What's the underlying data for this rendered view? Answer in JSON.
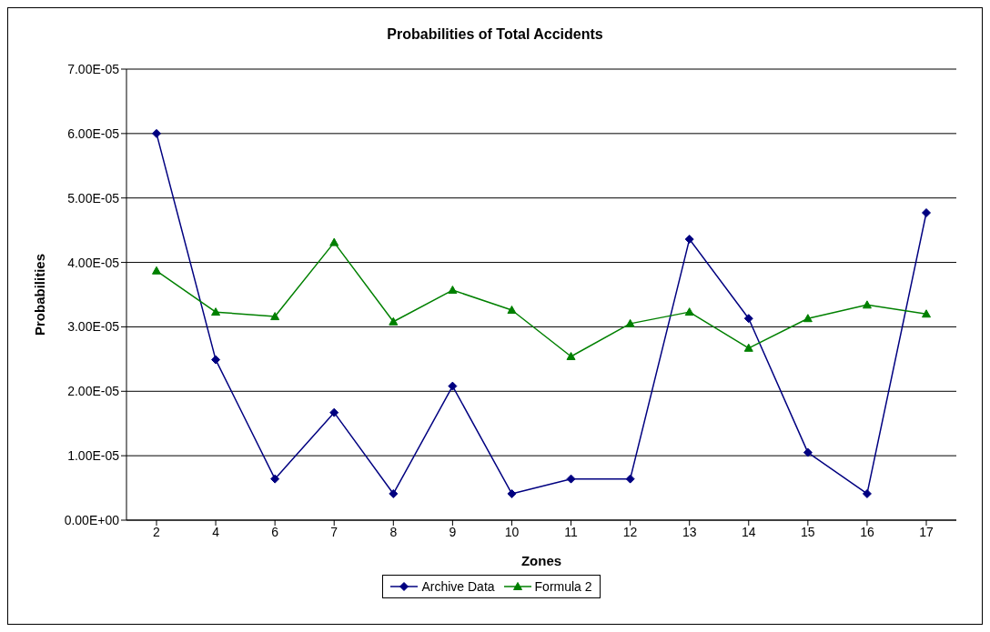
{
  "chart_data": {
    "type": "line",
    "title": "Probabilities of Total Accidents",
    "xlabel": "Zones",
    "ylabel": "Probabilities",
    "categories": [
      "2",
      "4",
      "6",
      "7",
      "8",
      "9",
      "10",
      "11",
      "12",
      "13",
      "14",
      "15",
      "16",
      "17"
    ],
    "series": [
      {
        "name": "Archive Data",
        "color": "#000080",
        "marker": "diamond",
        "values": [
          6e-05,
          2.49e-05,
          6.4e-06,
          1.67e-05,
          4.1e-06,
          2.08e-05,
          4.1e-06,
          6.4e-06,
          6.4e-06,
          4.36e-05,
          3.13e-05,
          1.05e-05,
          4.1e-06,
          4.77e-05
        ]
      },
      {
        "name": "Formula 2",
        "color": "#008000",
        "marker": "triangle",
        "values": [
          3.87e-05,
          3.23e-05,
          3.16e-05,
          4.31e-05,
          3.08e-05,
          3.57e-05,
          3.26e-05,
          2.54e-05,
          3.05e-05,
          3.23e-05,
          2.67e-05,
          3.13e-05,
          3.34e-05,
          3.2e-05
        ]
      }
    ],
    "ylim": [
      0,
      7e-05
    ],
    "yticks": [
      {
        "value": 0,
        "label": "0.00E+00"
      },
      {
        "value": 1e-05,
        "label": "1.00E-05"
      },
      {
        "value": 2e-05,
        "label": "2.00E-05"
      },
      {
        "value": 3e-05,
        "label": "3.00E-05"
      },
      {
        "value": 4e-05,
        "label": "4.00E-05"
      },
      {
        "value": 5e-05,
        "label": "5.00E-05"
      },
      {
        "value": 6e-05,
        "label": "6.00E-05"
      },
      {
        "value": 7e-05,
        "label": "7.00E-05"
      }
    ],
    "grid": "y",
    "legend": "bottom",
    "line_style": "solid"
  }
}
